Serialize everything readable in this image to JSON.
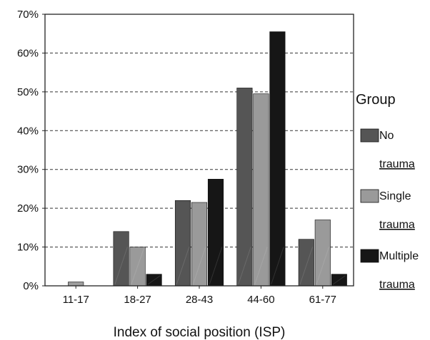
{
  "chart_data": {
    "type": "bar",
    "title": "",
    "xlabel": "Index of social position (ISP)",
    "ylabel": "",
    "ylim": [
      0,
      70
    ],
    "yticks": [
      "0%",
      "10%",
      "20%",
      "30%",
      "40%",
      "50%",
      "60%",
      "70%"
    ],
    "grid": "horizontal dashed",
    "legend_position": "right",
    "legend_title": "Group",
    "categories": [
      "11-17",
      "18-27",
      "28-43",
      "44-60",
      "61-77"
    ],
    "series": [
      {
        "name": "No trauma",
        "name_lines": [
          "No",
          "trauma"
        ],
        "color": "#555555",
        "values": [
          0,
          14,
          22,
          51,
          12
        ]
      },
      {
        "name": "Single trauma",
        "name_lines": [
          "Single",
          "trauma"
        ],
        "color": "#9a9a9a",
        "values": [
          1,
          10,
          21.5,
          49.5,
          17
        ]
      },
      {
        "name": "Multiple trauma",
        "name_lines": [
          "Multiple",
          "trauma"
        ],
        "color": "#161616",
        "values": [
          0,
          3,
          27.5,
          65.5,
          3
        ]
      }
    ]
  }
}
